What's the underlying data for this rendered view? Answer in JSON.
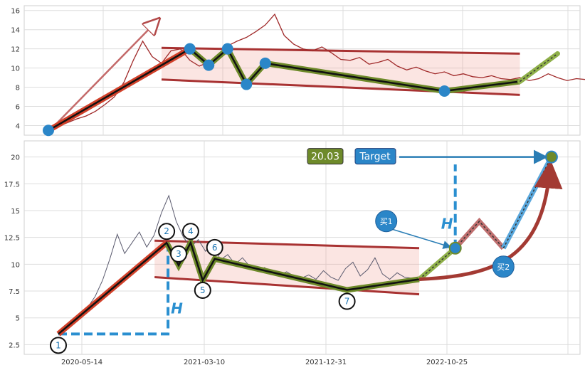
{
  "chart_data": [
    {
      "type": "line",
      "x_ticks": [],
      "y_ticks": [
        4,
        6,
        8,
        10,
        12,
        14,
        16
      ],
      "ylim": [
        3,
        16.5
      ],
      "grid": true,
      "series": [
        {
          "values": [
            3.5,
            3.9,
            4.3,
            4.7,
            5.0,
            5.5,
            6.2,
            7.0,
            8.5,
            10.8,
            12.8,
            11.2,
            10.5,
            11.8,
            12.0,
            10.8,
            10.2,
            10.6,
            11.2,
            12.3,
            12.8,
            13.2,
            13.8,
            14.5,
            15.6,
            13.4,
            12.5,
            12.0,
            11.8,
            12.2,
            11.6,
            10.9,
            10.8,
            11.1,
            10.4,
            10.6,
            10.9,
            10.2,
            9.8,
            10.1,
            9.7,
            9.4,
            9.6,
            9.2,
            9.4,
            9.1,
            9.0,
            9.2,
            8.9,
            8.8,
            9.0,
            8.7,
            8.9,
            9.4,
            9.0,
            8.7,
            8.9,
            8.8,
            8.5,
            8.6,
            8.4,
            8.7,
            8.5,
            8.6,
            9.3,
            10.2,
            9.4,
            8.9,
            9.6,
            10.3,
            9.1,
            8.8,
            9.7,
            9.0,
            8.6,
            8.9,
            8.7,
            8.8,
            8.6,
            8.7
          ]
        }
      ],
      "pattern_points": [
        [
          0,
          3.5
        ],
        [
          15,
          12.0
        ],
        [
          17,
          10.3
        ],
        [
          19,
          12.0
        ],
        [
          21,
          8.3
        ],
        [
          23,
          10.5
        ],
        [
          42,
          7.6
        ],
        [
          50,
          8.6
        ]
      ],
      "channel": {
        "upper": [
          [
            12,
            12.1
          ],
          [
            50,
            11.5
          ]
        ],
        "lower": [
          [
            12,
            8.8
          ],
          [
            50,
            7.2
          ]
        ]
      },
      "projection": [
        [
          50,
          8.6
        ],
        [
          54,
          11.5
        ]
      ]
    },
    {
      "type": "line",
      "x_ticks": [
        "2020-05-14",
        "2021-03-10",
        "2021-12-31",
        "2022-10-25"
      ],
      "y_ticks": [
        2.5,
        5.0,
        7.5,
        10.0,
        12.5,
        15.0,
        17.5,
        20.0
      ],
      "ylim": [
        1.6,
        21.5
      ],
      "grid": true,
      "series": [
        {
          "values": [
            3.5,
            4.0,
            4.6,
            5.2,
            6.0,
            7.0,
            8.5,
            10.5,
            12.8,
            11.0,
            12.0,
            13.0,
            11.6,
            12.7,
            14.8,
            16.4,
            14.0,
            12.5,
            11.6,
            12.3,
            11.2,
            12.1,
            10.4,
            10.9,
            10.0,
            10.6,
            9.8,
            9.4,
            9.7,
            9.2,
            9.0,
            9.3,
            8.9,
            8.7,
            9.0,
            8.6,
            9.4,
            8.8,
            8.5,
            9.6,
            10.2,
            8.9,
            9.5,
            10.6,
            9.1,
            8.6,
            9.2,
            8.8,
            8.7,
            8.6
          ]
        }
      ],
      "pattern_points": [
        [
          0,
          3.5
        ],
        [
          9,
          12.0
        ],
        [
          10,
          9.9
        ],
        [
          11,
          12.0
        ],
        [
          12,
          8.5
        ],
        [
          13,
          10.5
        ],
        [
          24,
          7.6
        ],
        [
          30,
          8.6
        ],
        [
          33,
          11.5
        ],
        [
          35,
          14.0
        ],
        [
          37,
          11.5
        ],
        [
          41,
          20.0
        ]
      ],
      "point_labels": [
        "1",
        "2",
        "3",
        "4",
        "5",
        "6",
        "7"
      ],
      "channel": {
        "upper": [
          [
            8,
            12.2
          ],
          [
            30,
            11.5
          ]
        ],
        "lower": [
          [
            8,
            8.8
          ],
          [
            30,
            7.2
          ]
        ]
      },
      "target_value": "20.03",
      "target_label": "Target",
      "buy1_label": "买1",
      "buy2_label": "买2",
      "h_label": "H"
    }
  ]
}
